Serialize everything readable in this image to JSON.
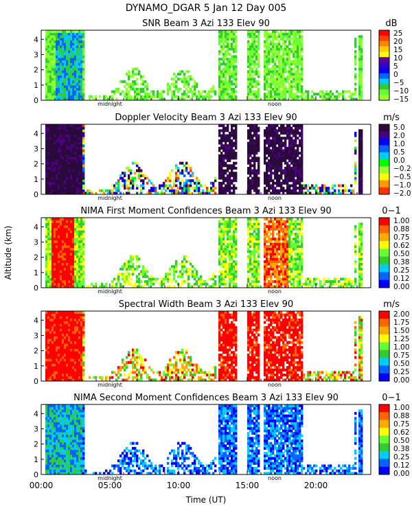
{
  "header": {
    "title": "DYNAMO_DGAR    5 Jan 12 Day 005"
  },
  "x_axis": {
    "label": "Time (UT)",
    "tick_labels": [
      "00:00",
      "05:00",
      "10:00",
      "15:00",
      "20:00"
    ],
    "tick_hours": [
      0,
      5,
      10,
      15,
      20
    ],
    "range_hours": [
      0,
      24
    ],
    "markers": [
      {
        "label": "midnight",
        "hour": 5.0
      },
      {
        "label": "noon",
        "hour": 17.0
      }
    ]
  },
  "y_axis": {
    "label": "Altitude (km)",
    "tick_labels": [
      "0",
      "1",
      "2",
      "3",
      "4"
    ],
    "range_km": [
      0,
      4.6
    ]
  },
  "chart_data": [
    {
      "type": "heatmap",
      "title": "SNR Beam 3 Azi 133 Elev 90",
      "unit": "dB",
      "colorbar_ticks": [
        "25",
        "20",
        "15",
        "10",
        "5",
        "0",
        "−5",
        "−10",
        "−15"
      ],
      "colors": [
        "#ff0000",
        "#ff4400",
        "#ff8800",
        "#ffcc00",
        "#ffff00",
        "#60009b",
        "#3300cc",
        "#0000ff",
        "#0066ff",
        "#00ccff",
        "#33cc33",
        "#66ff33",
        "#99ff33"
      ],
      "fill": "snr",
      "xlim": [
        0,
        24
      ],
      "ylim": [
        0,
        4.6
      ]
    },
    {
      "type": "heatmap",
      "title": "Doppler Velocity Beam 3 Azi 133 Elev 90",
      "unit": "m/s",
      "colorbar_ticks": [
        "5.0",
        "2.0",
        "1.0",
        "0.5",
        "0.0",
        "−0.2",
        "−0.5",
        "−1.0",
        "−2.0"
      ],
      "colors": [
        "#2a0a3a",
        "#4b0082",
        "#0000ff",
        "#0066ff",
        "#00ccff",
        "#00ff00",
        "#99ff33",
        "#ffff00",
        "#ff9900",
        "#ff3300"
      ],
      "fill": "vel",
      "xlim": [
        0,
        24
      ],
      "ylim": [
        0,
        4.6
      ]
    },
    {
      "type": "heatmap",
      "title": "NIMA First Moment Confidences Beam 3 Azi 133 Elev 90",
      "unit": "0−1",
      "colorbar_ticks": [
        "1.00",
        "0.88",
        "0.75",
        "0.62",
        "0.50",
        "0.38",
        "0.25",
        "0.12",
        "0.00"
      ],
      "colors": [
        "#ff0000",
        "#ff6600",
        "#ffaa00",
        "#ffff00",
        "#66ff33",
        "#33cc33",
        "#00ccff",
        "#0066ff",
        "#0000ff"
      ],
      "fill": "conf1",
      "xlim": [
        0,
        24
      ],
      "ylim": [
        0,
        4.6
      ]
    },
    {
      "type": "heatmap",
      "title": "Spectral Width Beam 3 Azi 133 Elev 90",
      "unit": "m/s",
      "colorbar_ticks": [
        "2.00",
        "1.75",
        "1.50",
        "1.25",
        "1.00",
        "0.75",
        "0.50",
        "0.25",
        "0.00"
      ],
      "colors": [
        "#ff0000",
        "#ff6600",
        "#ffaa00",
        "#ffff00",
        "#66ff33",
        "#33cc33",
        "#00ccff",
        "#0066ff",
        "#0000ff"
      ],
      "fill": "width",
      "xlim": [
        0,
        24
      ],
      "ylim": [
        0,
        4.6
      ]
    },
    {
      "type": "heatmap",
      "title": "NIMA Second Moment Confidences Beam 3 Azi 133 Elev 90",
      "unit": "0−1",
      "colorbar_ticks": [
        "1.00",
        "0.88",
        "0.75",
        "0.62",
        "0.50",
        "0.38",
        "0.25",
        "0.12",
        "0.00"
      ],
      "colors": [
        "#ff0000",
        "#ff6600",
        "#ffaa00",
        "#ffff00",
        "#66ff33",
        "#33cc33",
        "#00ccff",
        "#0066ff",
        "#0000ff"
      ],
      "fill": "conf2",
      "xlim": [
        0,
        24
      ],
      "ylim": [
        0,
        4.6
      ]
    }
  ]
}
